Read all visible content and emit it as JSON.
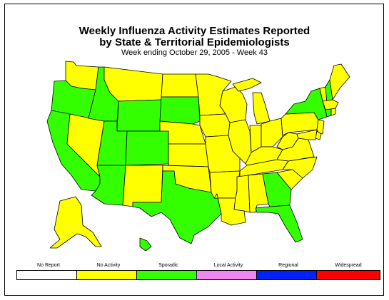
{
  "title_line1": "Weekly Influenza Activity Estimates Reported",
  "title_line2": "by State & Territorial Epidemiologists",
  "subtitle": "Week ending October 29, 2005 - Week 43",
  "colors": {
    "no_report": "#ffffff",
    "no_activity": "#ffff00",
    "sporadic": "#33ff00",
    "local_activity": "#ee88ee",
    "regional": "#0022ff",
    "widespread": "#ff0000"
  },
  "legend": [
    {
      "label": "No Report",
      "level": "no_report"
    },
    {
      "label": "No Activity",
      "level": "no_activity"
    },
    {
      "label": "Sporadic",
      "level": "sporadic"
    },
    {
      "label": "Local Activity",
      "level": "local_activity"
    },
    {
      "label": "Regional",
      "level": "regional"
    },
    {
      "label": "Widespread",
      "level": "widespread"
    }
  ],
  "states": {
    "WA": "no_activity",
    "OR": "sporadic",
    "CA": "sporadic",
    "NV": "no_activity",
    "ID": "sporadic",
    "MT": "no_activity",
    "WY": "sporadic",
    "UT": "sporadic",
    "AZ": "sporadic",
    "CO": "sporadic",
    "NM": "no_activity",
    "ND": "no_activity",
    "SD": "sporadic",
    "NE": "no_activity",
    "KS": "no_activity",
    "OK": "no_activity",
    "TX": "sporadic",
    "MN": "no_activity",
    "IA": "no_activity",
    "MO": "no_activity",
    "AR": "no_activity",
    "LA": "no_activity",
    "WI": "no_activity",
    "IL": "no_activity",
    "MI": "no_activity",
    "IN": "no_activity",
    "OH": "no_activity",
    "KY": "no_activity",
    "TN": "no_activity",
    "MS": "no_activity",
    "AL": "no_activity",
    "GA": "sporadic",
    "FL": "sporadic",
    "SC": "no_activity",
    "NC": "no_activity",
    "VA": "no_activity",
    "WV": "no_activity",
    "PA": "no_activity",
    "NY": "sporadic",
    "VT": "no_activity",
    "NH": "sporadic",
    "ME": "no_activity",
    "MA": "no_activity",
    "CT": "sporadic",
    "RI": "no_activity",
    "NJ": "no_activity",
    "DE": "no_activity",
    "MD": "no_activity",
    "AK": "no_activity",
    "HI": "sporadic"
  }
}
